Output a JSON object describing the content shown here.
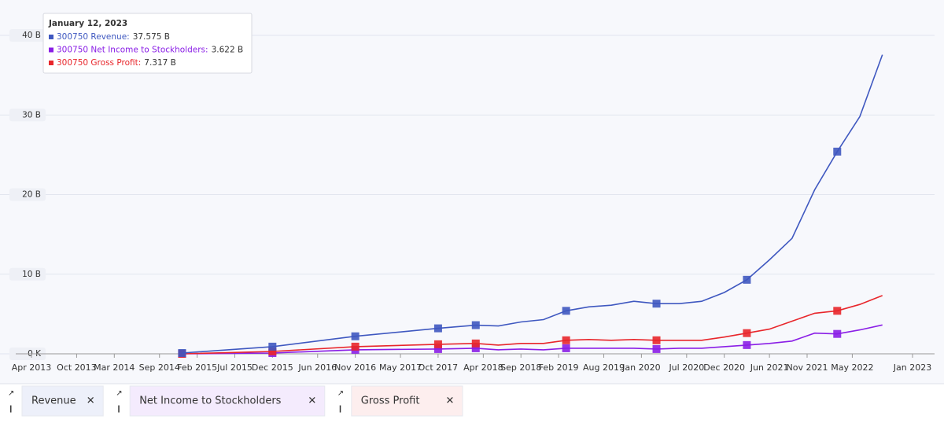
{
  "chart_data": {
    "type": "line",
    "x": [
      "2014-12",
      "2015-12",
      "2016-11",
      "2017-10",
      "2018-03",
      "2018-06",
      "2018-09",
      "2018-12",
      "2019-03",
      "2019-06",
      "2019-09",
      "2019-12",
      "2020-03",
      "2020-06",
      "2020-09",
      "2020-12",
      "2021-03",
      "2021-06",
      "2021-09",
      "2021-12",
      "2022-03",
      "2022-06",
      "2022-09"
    ],
    "series": [
      {
        "name": "Revenue",
        "color": "#3f58c0",
        "values": [
          0.1,
          0.9,
          2.2,
          3.2,
          3.6,
          3.5,
          4.0,
          4.3,
          5.4,
          5.9,
          6.1,
          6.6,
          6.3,
          6.3,
          6.6,
          7.7,
          9.3,
          11.8,
          14.5,
          20.6,
          25.4,
          29.8,
          37.575
        ]
      },
      {
        "name": "Net Income to Stockholders",
        "color": "#8a1ee6",
        "values": [
          0.0,
          0.1,
          0.5,
          0.6,
          0.7,
          0.5,
          0.6,
          0.5,
          0.7,
          0.7,
          0.7,
          0.7,
          0.6,
          0.7,
          0.7,
          0.9,
          1.1,
          1.3,
          1.6,
          2.6,
          2.5,
          3.0,
          3.622
        ]
      },
      {
        "name": "Gross Profit",
        "color": "#e8262b",
        "values": [
          0.0,
          0.3,
          0.9,
          1.2,
          1.3,
          1.1,
          1.3,
          1.3,
          1.7,
          1.8,
          1.7,
          1.8,
          1.7,
          1.7,
          1.7,
          2.1,
          2.6,
          3.1,
          4.1,
          5.1,
          5.4,
          6.2,
          7.317
        ]
      }
    ],
    "ylim": [
      0,
      40
    ],
    "yticks": [
      {
        "value": 0,
        "label": "0 K"
      },
      {
        "value": 10,
        "label": "10 B"
      },
      {
        "value": 20,
        "label": "20 B"
      },
      {
        "value": 30,
        "label": "30 B"
      },
      {
        "value": 40,
        "label": "40 B"
      }
    ],
    "xlim": [
      "2013-04",
      "2023-01"
    ],
    "xticks": [
      {
        "value": "2013-04",
        "label": "Apr 2013"
      },
      {
        "value": "2013-10",
        "label": "Oct 2013"
      },
      {
        "value": "2014-03",
        "label": "Mar 2014"
      },
      {
        "value": "2014-09",
        "label": "Sep 2014"
      },
      {
        "value": "2015-02",
        "label": "Feb 2015"
      },
      {
        "value": "2015-07",
        "label": "Jul 2015"
      },
      {
        "value": "2015-12",
        "label": "Dec 2015"
      },
      {
        "value": "2016-06",
        "label": "Jun 2016"
      },
      {
        "value": "2016-11",
        "label": "Nov 2016"
      },
      {
        "value": "2017-05",
        "label": "May 2017"
      },
      {
        "value": "2017-10",
        "label": "Oct 2017"
      },
      {
        "value": "2018-04",
        "label": "Apr 2018"
      },
      {
        "value": "2018-09",
        "label": "Sep 2018"
      },
      {
        "value": "2019-02",
        "label": "Feb 2019"
      },
      {
        "value": "2019-08",
        "label": "Aug 2019"
      },
      {
        "value": "2020-01",
        "label": "Jan 2020"
      },
      {
        "value": "2020-07",
        "label": "Jul 2020"
      },
      {
        "value": "2020-12",
        "label": "Dec 2020"
      },
      {
        "value": "2021-06",
        "label": "Jun 2021"
      },
      {
        "value": "2021-11",
        "label": "Nov 2021"
      },
      {
        "value": "2022-05",
        "label": "May 2022"
      },
      {
        "value": "2023-01",
        "label": "Jan 2023"
      }
    ],
    "grid": true,
    "tooltip": {
      "title": "January 12, 2023",
      "items": [
        {
          "name": "300750 Revenue:",
          "value": "37.575 B"
        },
        {
          "name": "300750 Net Income to Stockholders:",
          "value": "3.622 B"
        },
        {
          "name": "300750 Gross Profit:",
          "value": "7.317 B"
        }
      ]
    }
  }
}
